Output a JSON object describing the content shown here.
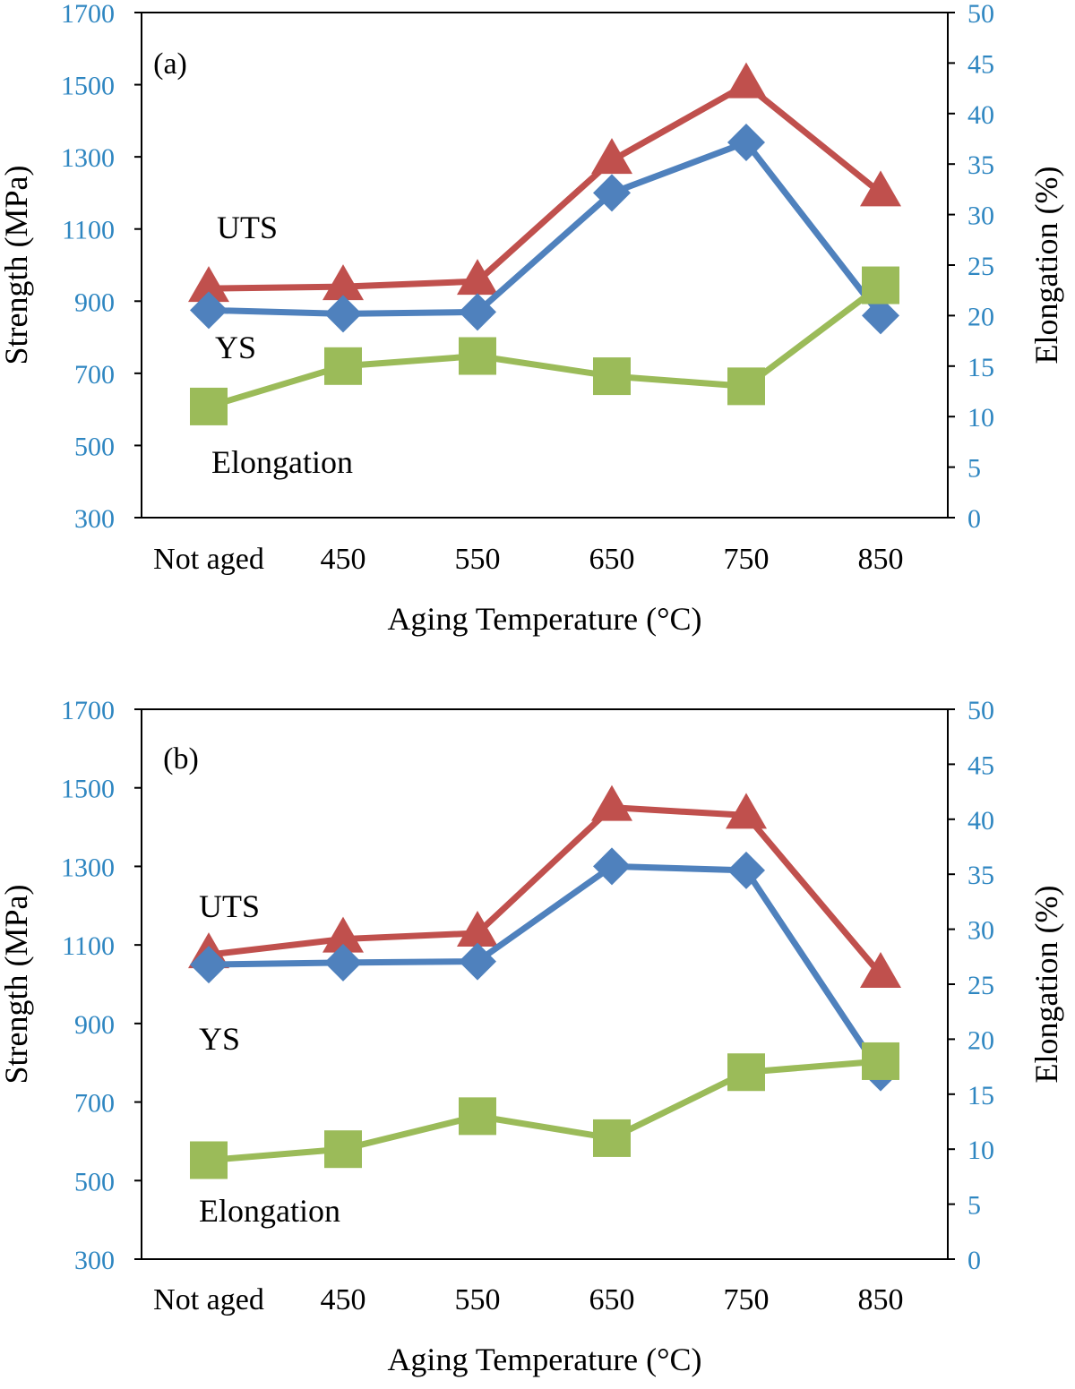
{
  "chart_data": [
    {
      "type": "line",
      "panel_label": "(a)",
      "categories": [
        "Not aged",
        "450",
        "550",
        "650",
        "750",
        "850"
      ],
      "xlabel": "Aging Temperature (°C)",
      "ylabel": "Strength (MPa)",
      "y2label": "Elongation (%)",
      "ylim": [
        300,
        1700
      ],
      "y2lim": [
        0,
        50
      ],
      "yticks": [
        "300",
        "500",
        "700",
        "900",
        "1100",
        "1300",
        "1500",
        "1700"
      ],
      "y2ticks": [
        "0",
        "5",
        "10",
        "15",
        "20",
        "25",
        "30",
        "35",
        "40",
        "45",
        "50"
      ],
      "series": [
        {
          "name": "UTS",
          "axis": "left",
          "marker": "triangle",
          "color": "#c0504d",
          "values": [
            935,
            940,
            955,
            1290,
            1500,
            1200
          ]
        },
        {
          "name": "YS",
          "axis": "left",
          "marker": "diamond",
          "color": "#4f81bd",
          "values": [
            875,
            865,
            870,
            1200,
            1340,
            860
          ]
        },
        {
          "name": "Elongation",
          "axis": "right",
          "marker": "square",
          "color": "#9bbb59",
          "values": [
            11,
            15,
            16,
            14,
            13,
            23
          ]
        }
      ],
      "annotations": [
        "UTS",
        "YS",
        "Elongation"
      ]
    },
    {
      "type": "line",
      "panel_label": "(b)",
      "categories": [
        "Not aged",
        "450",
        "550",
        "650",
        "750",
        "850"
      ],
      "xlabel": "Aging Temperature (°C)",
      "ylabel": "Strength (MPa)",
      "y2label": "Elongation (%)",
      "ylim": [
        300,
        1700
      ],
      "y2lim": [
        0,
        50
      ],
      "yticks": [
        "300",
        "500",
        "700",
        "900",
        "1100",
        "1300",
        "1500",
        "1700"
      ],
      "y2ticks": [
        "0",
        "5",
        "10",
        "15",
        "20",
        "25",
        "30",
        "35",
        "40",
        "45",
        "50"
      ],
      "series": [
        {
          "name": "UTS",
          "axis": "left",
          "marker": "triangle",
          "color": "#c0504d",
          "values": [
            1075,
            1115,
            1130,
            1450,
            1430,
            1025
          ]
        },
        {
          "name": "YS",
          "axis": "left",
          "marker": "diamond",
          "color": "#4f81bd",
          "values": [
            1050,
            1055,
            1058,
            1300,
            1290,
            775
          ]
        },
        {
          "name": "Elongation",
          "axis": "right",
          "marker": "square",
          "color": "#9bbb59",
          "values": [
            9,
            10,
            13,
            11,
            17,
            18
          ]
        }
      ],
      "annotations": [
        "UTS",
        "YS",
        "Elongation"
      ]
    }
  ]
}
